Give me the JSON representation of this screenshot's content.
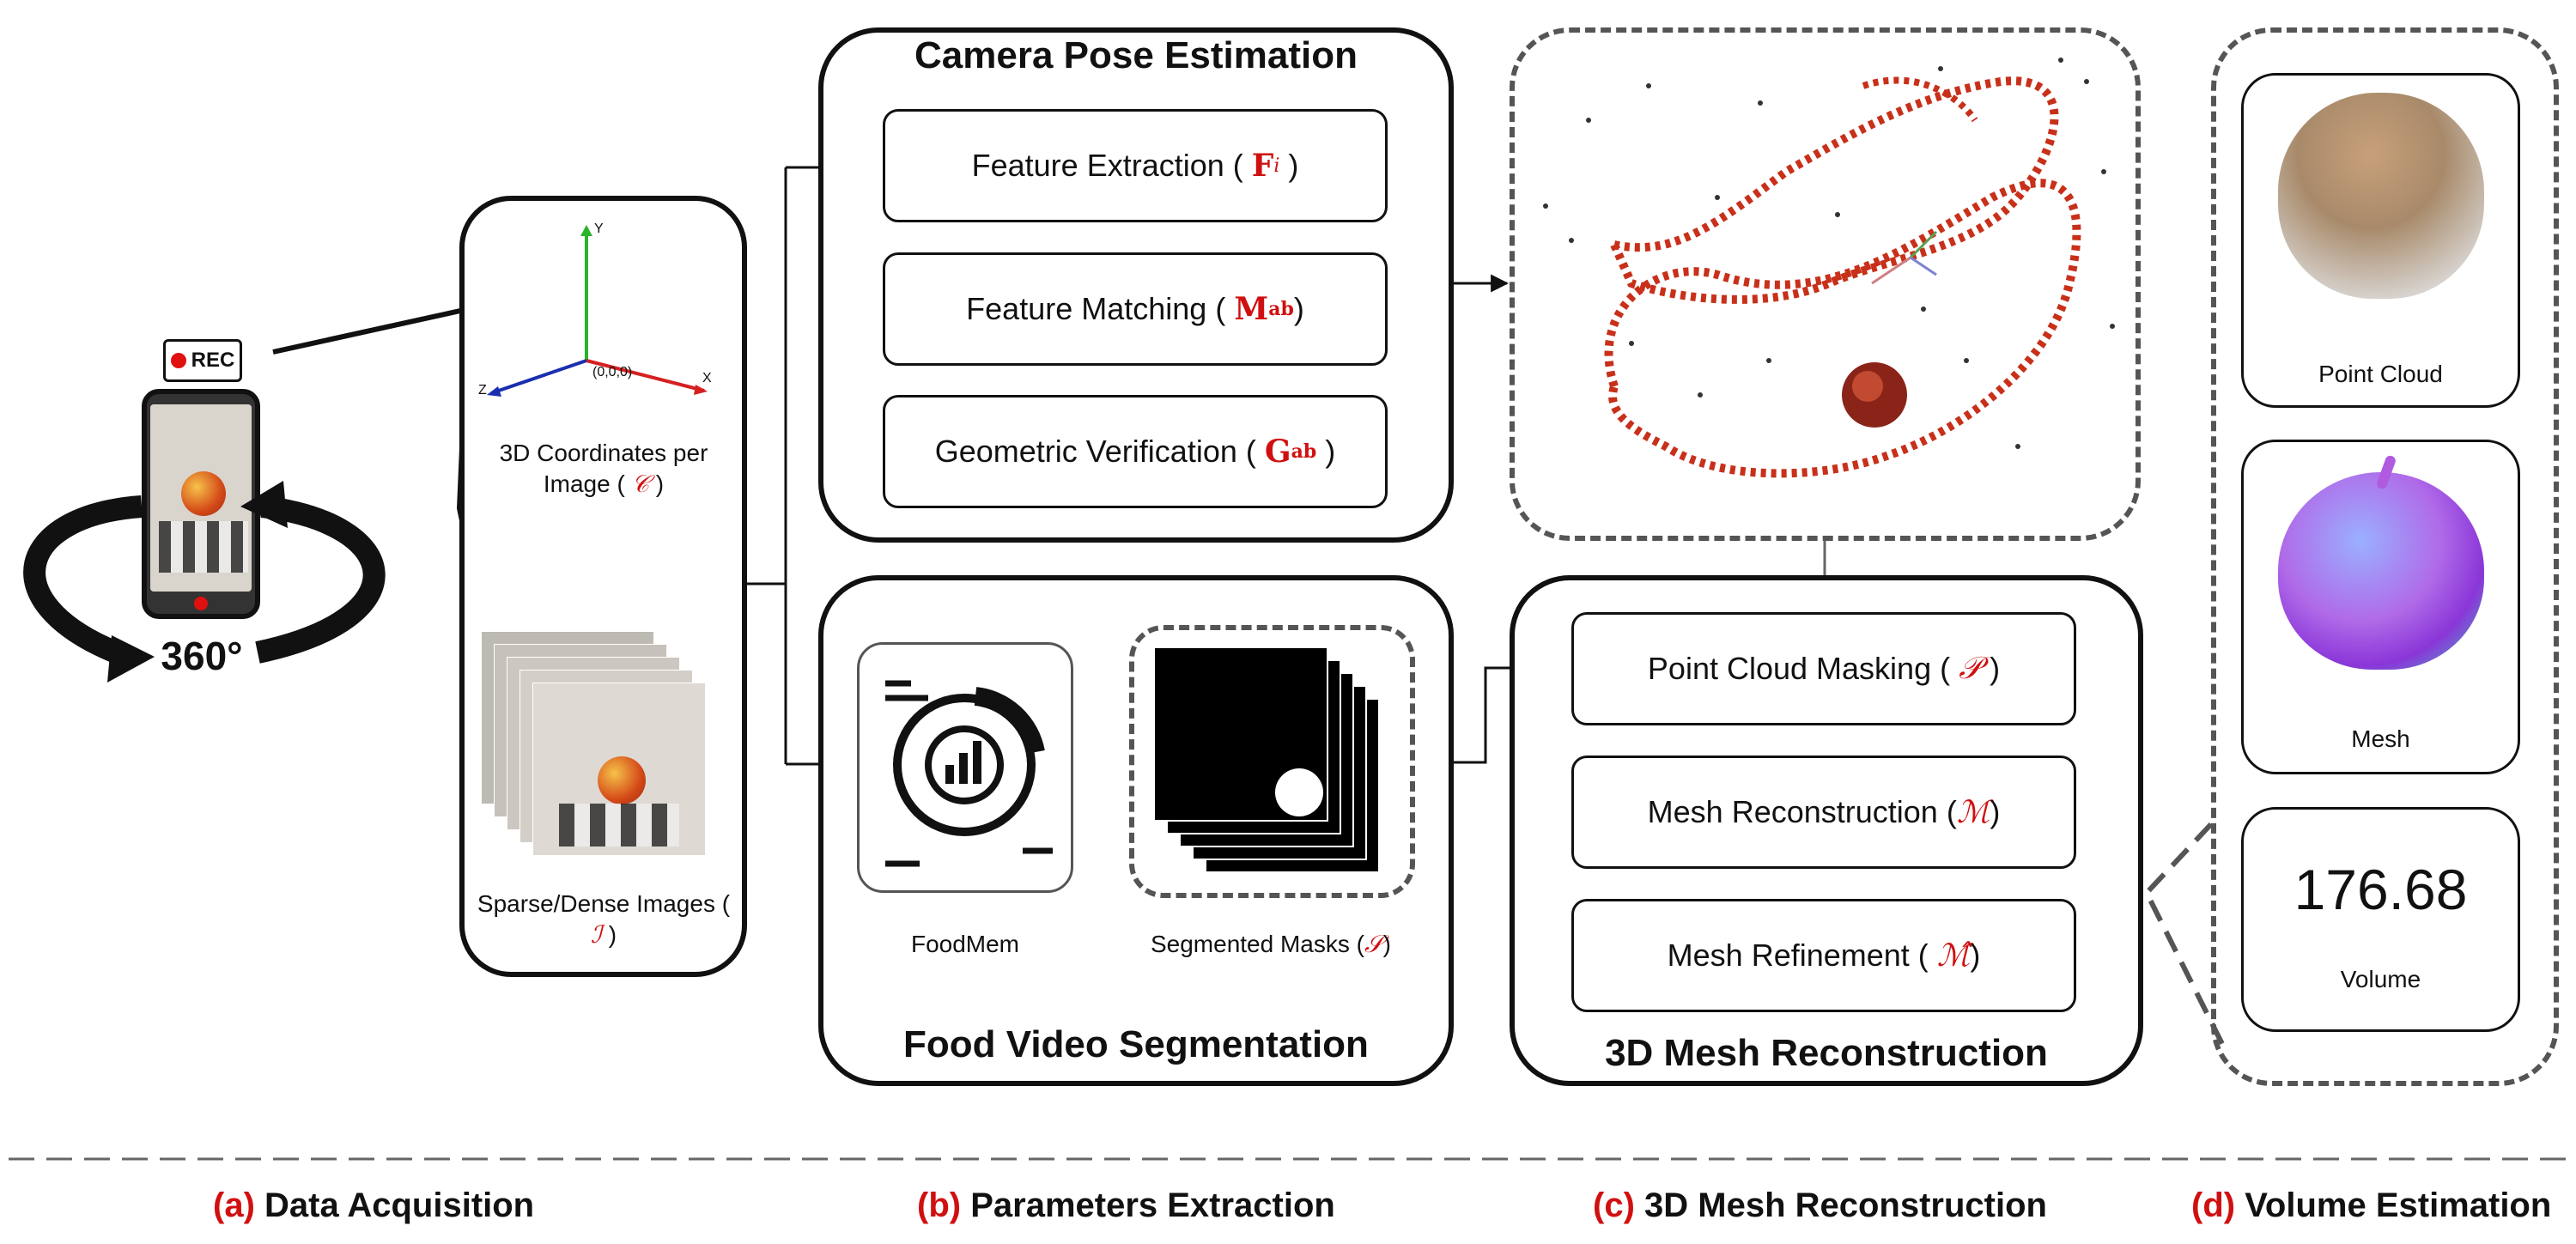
{
  "acquisition": {
    "rec_label": "REC",
    "rotation_label": "360°",
    "coords_caption": "3D Coordinates per Image (",
    "coords_symbol": "𝒞",
    "images_caption": "Sparse/Dense Images (",
    "images_symbol": "ℐ",
    "axis_y": "Y",
    "axis_x": "X",
    "axis_z": "Z",
    "origin": "(0,0,0)"
  },
  "camera_pose": {
    "title": "Camera Pose Estimation",
    "steps": [
      {
        "label": "Feature Extraction (",
        "symbol": "F",
        "sub": "i"
      },
      {
        "label": "Feature Matching (",
        "symbol": "M",
        "sub": "ab"
      },
      {
        "label": "Geometric Verification (",
        "symbol": "G",
        "sub": "ab"
      }
    ]
  },
  "segmentation": {
    "title": "Food Video Segmentation",
    "foodmem_label": "FoodMem",
    "masks_label": "Segmented Masks (",
    "masks_symbol": "𝒮"
  },
  "mesh": {
    "title": "3D Mesh Reconstruction",
    "steps": [
      {
        "label": "Point Cloud Masking (",
        "symbol": "𝒫"
      },
      {
        "label": "Mesh Reconstruction (",
        "symbol": "ℳ"
      },
      {
        "label": "Mesh Refinement (",
        "symbol": "ℳ̂"
      }
    ]
  },
  "volume": {
    "point_cloud_label": "Point Cloud",
    "mesh_label": "Mesh",
    "volume_value": "176.68",
    "volume_label": "Volume"
  },
  "sections": [
    {
      "letter": "(a)",
      "label": "Data Acquisition"
    },
    {
      "letter": "(b)",
      "label": "Parameters Extraction"
    },
    {
      "letter": "(c)",
      "label": "3D Mesh Reconstruction"
    },
    {
      "letter": "(d)",
      "label": "Volume Estimation"
    }
  ],
  "colors": {
    "accent": "#d01010",
    "line": "#111111",
    "dashed": "#555555"
  }
}
